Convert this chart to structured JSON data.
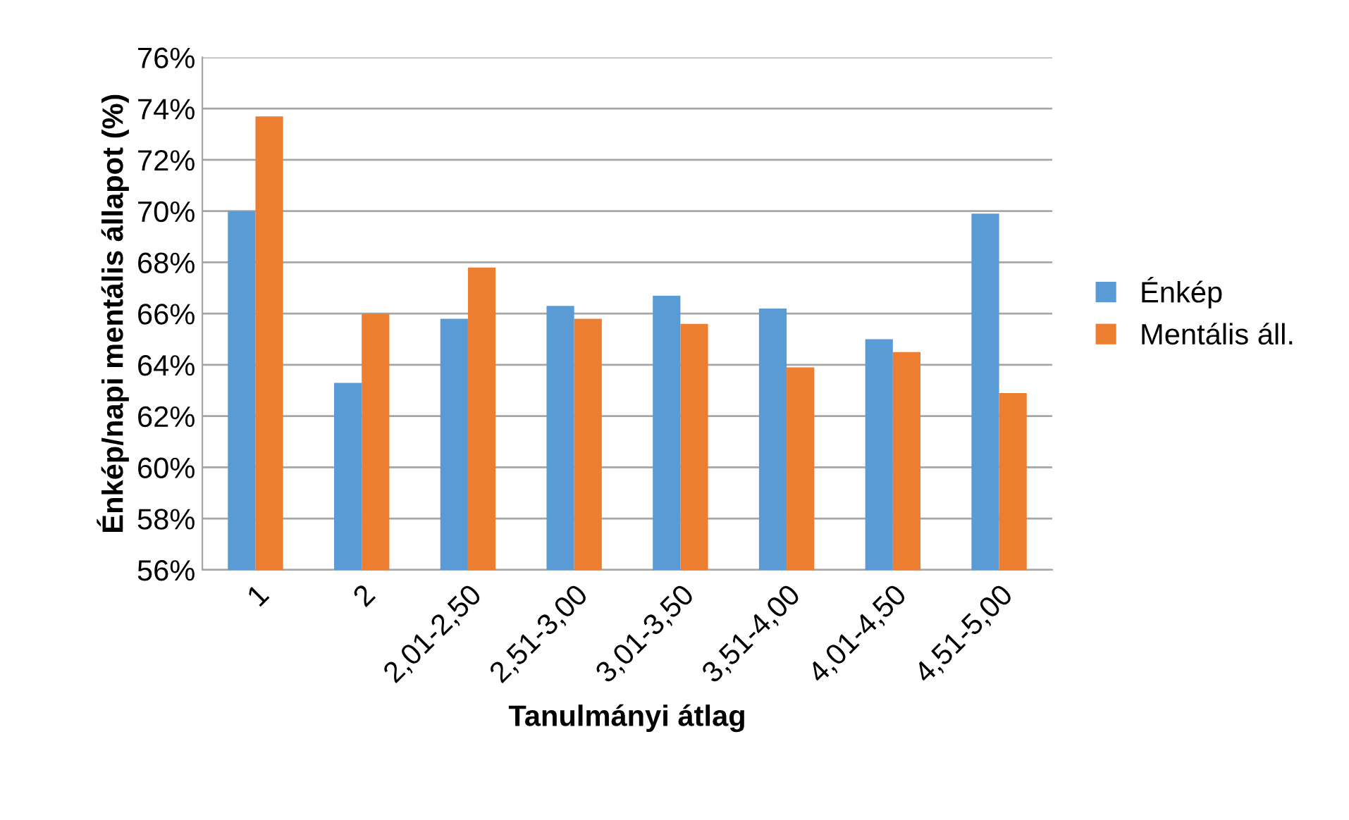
{
  "chart_data": {
    "type": "bar",
    "xlabel": "Tanulmányi átlag",
    "ylabel": "Énkép/napi mentális állapot (%)",
    "categories": [
      "1",
      "2",
      "2,01-2,50",
      "2,51-3,00",
      "3,01-3,50",
      "3,51-4,00",
      "4,01-4,50",
      "4,51-5,00"
    ],
    "series": [
      {
        "name": "Énkép",
        "color": "#5b9bd5",
        "values": [
          70.0,
          63.3,
          65.8,
          66.3,
          66.7,
          66.2,
          65.0,
          69.9
        ]
      },
      {
        "name": "Mentális áll.",
        "color": "#ed7d31",
        "values": [
          73.7,
          66.0,
          67.8,
          65.8,
          65.6,
          63.9,
          64.5,
          62.9
        ]
      }
    ],
    "ylim": [
      56,
      76
    ],
    "yticks": [
      {
        "value": 56,
        "label": "56%"
      },
      {
        "value": 58,
        "label": "58%"
      },
      {
        "value": 60,
        "label": "60%"
      },
      {
        "value": 62,
        "label": "62%"
      },
      {
        "value": 64,
        "label": "64%"
      },
      {
        "value": 66,
        "label": "66%"
      },
      {
        "value": 68,
        "label": "68%"
      },
      {
        "value": 70,
        "label": "70%"
      },
      {
        "value": 72,
        "label": "72%"
      },
      {
        "value": 74,
        "label": "74%"
      },
      {
        "value": 76,
        "label": "76%"
      }
    ],
    "grid": "y",
    "legend": "right"
  }
}
